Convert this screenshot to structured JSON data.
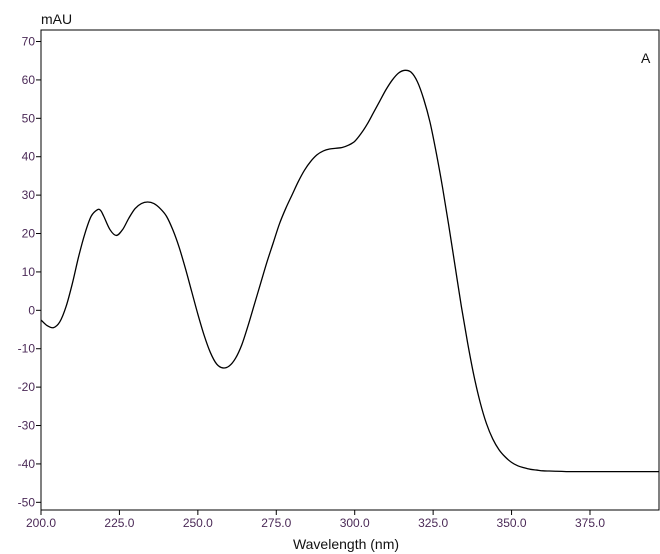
{
  "chart_data": {
    "type": "line",
    "panel_label": "A",
    "title": "",
    "xlabel": "Wavelength (nm)",
    "ylabel": "mAU",
    "xlim": [
      200,
      397
    ],
    "ylim": [
      -52,
      73
    ],
    "x_ticks": [
      200,
      225,
      250,
      275,
      300,
      325,
      350,
      375
    ],
    "x_tick_labels": [
      "200.0",
      "225.0",
      "250.0",
      "275.0",
      "300.0",
      "325.0",
      "350.0",
      "375.0"
    ],
    "y_ticks": [
      70,
      60,
      50,
      40,
      30,
      20,
      10,
      0,
      -10,
      -20,
      -30,
      -40,
      -50
    ],
    "y_tick_labels": [
      "70",
      "60",
      "50",
      "40",
      "30",
      "20",
      "10",
      "0",
      "-10",
      "-20",
      "-30",
      "-40",
      "-50"
    ],
    "grid": false,
    "legend": "none",
    "series": [
      {
        "color": "#000000",
        "x": [
          200,
          202,
          204,
          206,
          208,
          210,
          212,
          214,
          216,
          218,
          219,
          220,
          222,
          224,
          226,
          228,
          230,
          232,
          234,
          236,
          238,
          240,
          242,
          244,
          246,
          248,
          250,
          252,
          254,
          256,
          258,
          260,
          262,
          264,
          266,
          268,
          270,
          272,
          274,
          276,
          278,
          280,
          282,
          284,
          286,
          288,
          290,
          292,
          294,
          296,
          298,
          300,
          302,
          304,
          306,
          308,
          310,
          312,
          314,
          316,
          318,
          320,
          322,
          324,
          326,
          328,
          330,
          332,
          334,
          336,
          338,
          340,
          342,
          344,
          346,
          348,
          350,
          352,
          354,
          356,
          358,
          360,
          362,
          364,
          366,
          368,
          370,
          372,
          374,
          376,
          378,
          380,
          382,
          384,
          386,
          388,
          390,
          392,
          394,
          397
        ],
        "y": [
          -2.5,
          -4.0,
          -4.5,
          -3.0,
          1.0,
          7.0,
          14.0,
          20.0,
          24.5,
          26.2,
          26.0,
          24.5,
          21.0,
          19.5,
          21.0,
          24.0,
          26.5,
          27.8,
          28.2,
          27.8,
          26.5,
          24.5,
          21.0,
          16.5,
          11.0,
          5.0,
          -1.0,
          -6.5,
          -11.0,
          -14.0,
          -15.0,
          -14.5,
          -12.5,
          -9.0,
          -4.0,
          1.5,
          7.0,
          12.5,
          17.5,
          22.5,
          26.5,
          30.0,
          33.5,
          36.5,
          38.8,
          40.5,
          41.5,
          42.0,
          42.2,
          42.4,
          43.0,
          44.0,
          46.0,
          48.5,
          51.5,
          54.5,
          57.5,
          60.0,
          61.8,
          62.5,
          62.0,
          59.5,
          55.0,
          49.0,
          41.0,
          32.0,
          22.0,
          11.5,
          1.0,
          -8.5,
          -17.0,
          -24.0,
          -29.5,
          -33.5,
          -36.3,
          -38.2,
          -39.6,
          -40.5,
          -41.0,
          -41.4,
          -41.6,
          -41.8,
          -41.85,
          -41.9,
          -41.95,
          -42.0,
          -42.0,
          -42.0,
          -42.0,
          -42.0,
          -42.0,
          -42.0,
          -42.0,
          -42.0,
          -42.0,
          -42.0,
          -42.0,
          -42.0,
          -42.0,
          -42.0
        ]
      }
    ]
  }
}
